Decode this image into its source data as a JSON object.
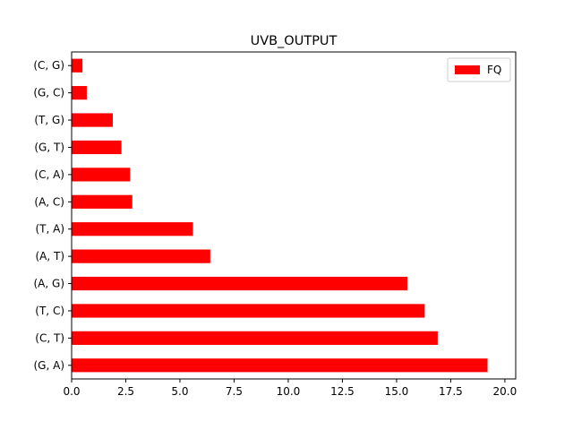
{
  "chart_data": {
    "type": "bar",
    "orientation": "horizontal",
    "title": "UVB_OUTPUT",
    "xlabel": "",
    "ylabel": "",
    "categories": [
      "(G, A)",
      "(C, T)",
      "(T, C)",
      "(A, G)",
      "(A, T)",
      "(T, A)",
      "(A, C)",
      "(C, A)",
      "(G, T)",
      "(T, G)",
      "(G, C)",
      "(C, G)"
    ],
    "series": [
      {
        "name": "FQ",
        "color": "#ff0000",
        "values": [
          19.2,
          16.9,
          16.3,
          15.5,
          6.4,
          5.6,
          2.8,
          2.7,
          2.3,
          1.9,
          0.7,
          0.5
        ]
      }
    ],
    "xlim": [
      0,
      20.5
    ],
    "xticks": [
      0,
      2.5,
      5,
      7.5,
      10,
      12.5,
      15,
      17.5,
      20
    ],
    "xtick_labels": [
      "0.0",
      "2.5",
      "5.0",
      "7.5",
      "10.0",
      "12.5",
      "15.0",
      "17.5",
      "20.0"
    ],
    "grid": false,
    "legend_position": "top-right"
  }
}
